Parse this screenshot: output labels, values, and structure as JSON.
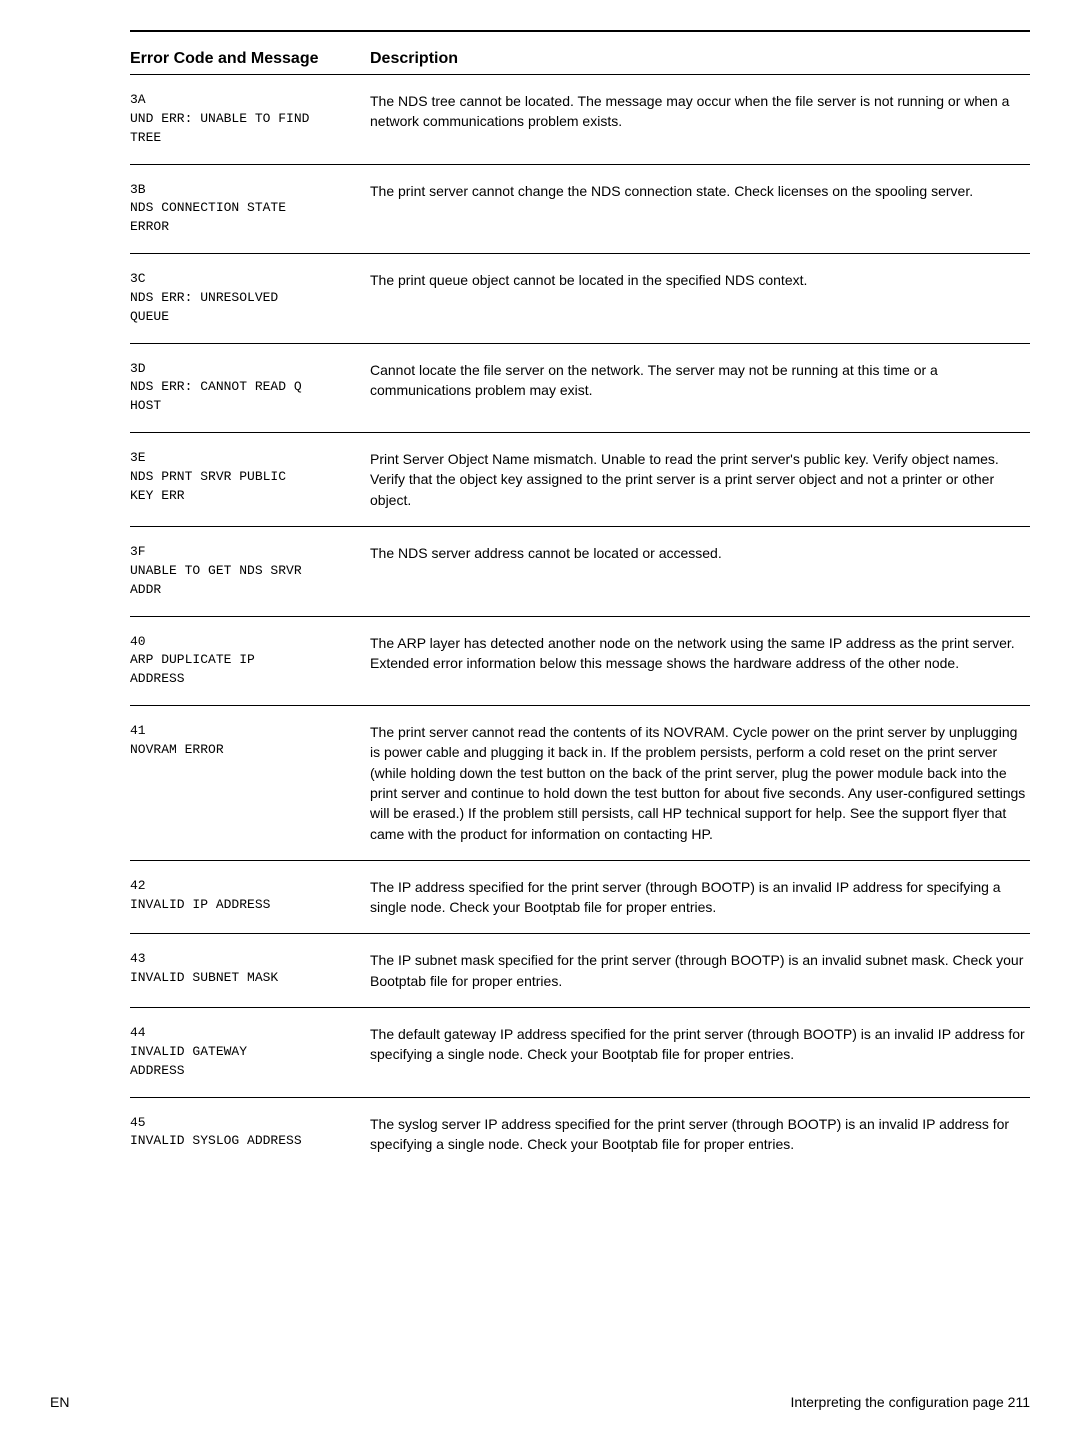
{
  "header": {
    "col1": "Error Code and Message",
    "col2": "Description"
  },
  "rows": [
    {
      "code": "3A\nUND ERR: UNABLE TO FIND\nTREE",
      "desc": "The NDS tree cannot be located. The message may occur when the file server is not running or when a network communications problem exists."
    },
    {
      "code": "3B\nNDS CONNECTION STATE\nERROR",
      "desc": "The print server cannot change the NDS connection state. Check licenses on the spooling server."
    },
    {
      "code": "3C\nNDS ERR: UNRESOLVED\nQUEUE",
      "desc": "The print queue object cannot be located in the specified NDS context."
    },
    {
      "code": "3D\nNDS ERR: CANNOT READ Q\nHOST",
      "desc": "Cannot locate the file server on the network. The server may not be running at this time or a communications problem may exist."
    },
    {
      "code": "3E\nNDS PRNT SRVR PUBLIC\nKEY ERR",
      "desc": "Print Server Object Name mismatch. Unable to read the print server's public key. Verify object names. Verify that the object key assigned to the print server is a print server object and not a printer or other object."
    },
    {
      "code": "3F\nUNABLE TO GET NDS SRVR\nADDR",
      "desc": "The NDS server address cannot be located or accessed."
    },
    {
      "code": "40\nARP DUPLICATE IP\nADDRESS",
      "desc": "The ARP layer has detected another node on the network using the same IP address as the print server. Extended error information below this message shows the hardware address of the other node."
    },
    {
      "code": "41\nNOVRAM ERROR",
      "desc": "The print server cannot read the contents of its NOVRAM. Cycle power on the print server by unplugging is power cable and plugging it back in. If the problem persists, perform a cold reset on the print server (while holding down the test  button on the back of the print server, plug the power module back into the print server and continue to hold down the test  button for about five seconds. Any user-configured settings will be erased.) If the problem still persists, call HP technical support for help. See the support flyer that came with the product for information on contacting HP."
    },
    {
      "code": "42\nINVALID IP ADDRESS",
      "desc": "The IP address specified for the print server (through BOOTP) is an invalid IP address for specifying a single node. Check your Bootptab file for proper entries."
    },
    {
      "code": "43\nINVALID SUBNET MASK",
      "desc": "The IP subnet mask specified for the print server (through BOOTP) is an invalid subnet mask. Check your Bootptab file for proper entries."
    },
    {
      "code": "44\nINVALID GATEWAY\nADDRESS",
      "desc": "The default gateway IP address specified for the print server (through BOOTP) is an invalid IP address for specifying a single node. Check your Bootptab file for proper entries."
    },
    {
      "code": "45\nINVALID SYSLOG ADDRESS",
      "desc": "The syslog server IP address specified for the print server (through BOOTP) is an invalid IP address for specifying a single node. Check your Bootptab file for proper entries."
    }
  ],
  "footer": {
    "left": "EN",
    "right": "Interpreting the configuration page 211"
  }
}
